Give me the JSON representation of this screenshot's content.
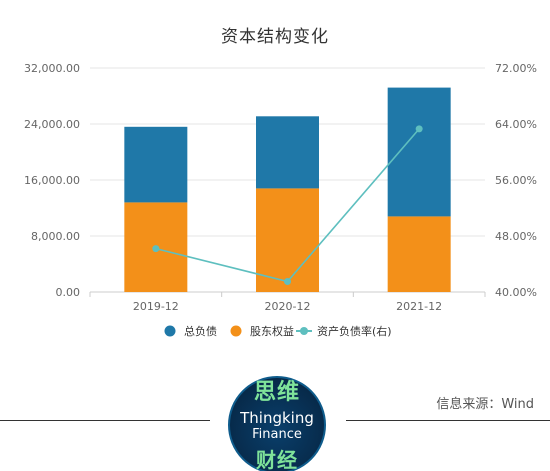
{
  "title": "资本结构变化",
  "source": "信息来源：Wind",
  "logo": {
    "top": "思维",
    "mid1": "Thingking",
    "mid2": "Finance",
    "bottom": "财经"
  },
  "colors": {
    "debt": "#1f78a8",
    "equity": "#f39019",
    "ratio": "#5ebfbf",
    "grid": "#e6e6e6",
    "axis": "#cccccc",
    "text": "#666666"
  },
  "chart_data": {
    "type": "bar",
    "stacked": true,
    "categories": [
      "2019-12",
      "2020-12",
      "2021-12"
    ],
    "series": [
      {
        "name": "总负债",
        "type": "bar",
        "values": [
          10800,
          10300,
          18400
        ]
      },
      {
        "name": "股东权益",
        "type": "bar",
        "values": [
          12800,
          14800,
          10800
        ]
      },
      {
        "name": "资产负债率(右)",
        "type": "line",
        "axis": "right",
        "values": [
          46.2,
          41.5,
          63.3
        ]
      }
    ],
    "ylim_left": [
      0,
      32000
    ],
    "yticks_left": [
      "0.00",
      "8,000.00",
      "16,000.00",
      "24,000.00",
      "32,000.00"
    ],
    "ylim_right": [
      40,
      72
    ],
    "yticks_right": [
      "40.00%",
      "48.00%",
      "56.00%",
      "64.00%",
      "72.00%"
    ],
    "grid": true,
    "legend_position": "bottom"
  }
}
